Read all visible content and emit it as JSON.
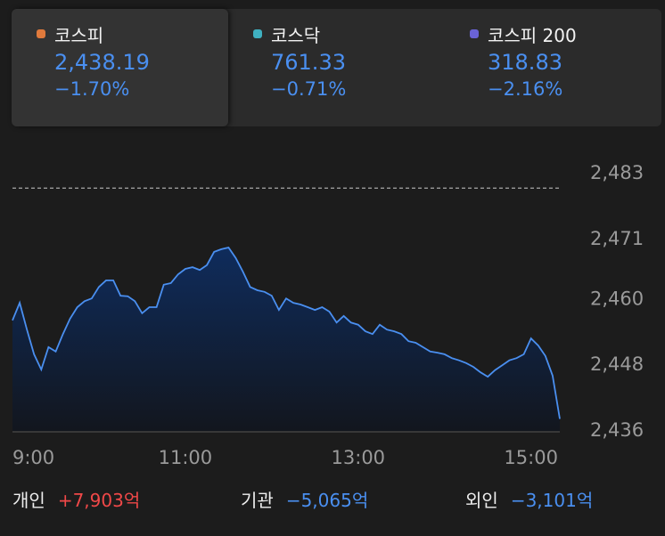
{
  "tabs": [
    {
      "name": "코스피",
      "value": "2,438.19",
      "change": "−1.70%",
      "color": "#e07a3c",
      "selected": true
    },
    {
      "name": "코스닥",
      "value": "761.33",
      "change": "−0.71%",
      "color": "#3fb0c0",
      "selected": false
    },
    {
      "name": "코스피 200",
      "value": "318.83",
      "change": "−2.16%",
      "color": "#6a63d6",
      "selected": false
    }
  ],
  "chart_data": {
    "type": "line",
    "x": [
      540,
      545,
      550,
      555,
      560,
      565,
      570,
      575,
      580,
      585,
      590,
      595,
      600,
      605,
      610,
      615,
      620,
      625,
      630,
      635,
      640,
      645,
      650,
      655,
      660,
      665,
      670,
      675,
      680,
      685,
      690,
      695,
      700,
      705,
      710,
      715,
      720,
      725,
      730,
      735,
      740,
      745,
      750,
      755,
      760,
      765,
      770,
      775,
      780,
      785,
      790,
      795,
      800,
      805,
      810,
      815,
      820,
      825,
      830,
      835,
      840,
      845,
      850,
      855,
      860,
      865,
      870,
      875,
      880,
      885,
      890,
      895,
      900,
      905,
      910,
      915,
      920
    ],
    "series": [
      {
        "color": "#4a8ff0",
        "values": [
          2456.2,
          2459.4,
          2454.5,
          2450.0,
          2447.2,
          2451.3,
          2450.5,
          2453.7,
          2456.5,
          2458.6,
          2459.7,
          2460.2,
          2462.3,
          2463.5,
          2463.5,
          2460.7,
          2460.6,
          2459.7,
          2457.5,
          2458.6,
          2458.6,
          2462.7,
          2463.0,
          2464.6,
          2465.6,
          2465.9,
          2465.4,
          2466.3,
          2468.7,
          2469.2,
          2469.5,
          2467.6,
          2465.1,
          2462.3,
          2461.7,
          2461.4,
          2460.7,
          2458.1,
          2460.2,
          2459.4,
          2459.1,
          2458.6,
          2458.1,
          2458.6,
          2457.8,
          2455.8,
          2457.0,
          2455.8,
          2455.4,
          2454.2,
          2453.7,
          2455.4,
          2454.5,
          2454.2,
          2453.7,
          2452.4,
          2452.1,
          2451.3,
          2450.5,
          2450.3,
          2450.0,
          2449.3,
          2448.9,
          2448.4,
          2447.7,
          2446.7,
          2445.9,
          2447.1,
          2448.0,
          2448.9,
          2449.3,
          2450.0,
          2452.9,
          2451.6,
          2449.7,
          2446.1,
          2438.19
        ]
      }
    ],
    "reference_line": 2480.35,
    "xlim": [
      540,
      920
    ],
    "xticks": [
      {
        "value": 540,
        "label": "9:00"
      },
      {
        "value": 660,
        "label": "11:00"
      },
      {
        "value": 780,
        "label": "13:00"
      },
      {
        "value": 900,
        "label": "15:00"
      }
    ],
    "ylim": [
      2436,
      2483
    ],
    "yticks": [
      {
        "value": 2483,
        "label": "2,483"
      },
      {
        "value": 2471,
        "label": "2,471"
      },
      {
        "value": 2460,
        "label": "2,460"
      },
      {
        "value": 2448,
        "label": "2,448"
      },
      {
        "value": 2436,
        "label": "2,436"
      }
    ]
  },
  "investors": [
    {
      "name": "개인",
      "value": "+7,903억",
      "color": "#f04848"
    },
    {
      "name": "기관",
      "value": "−5,065억",
      "color": "#4a8ff0"
    },
    {
      "name": "외인",
      "value": "−3,101억",
      "color": "#4a8ff0"
    }
  ]
}
